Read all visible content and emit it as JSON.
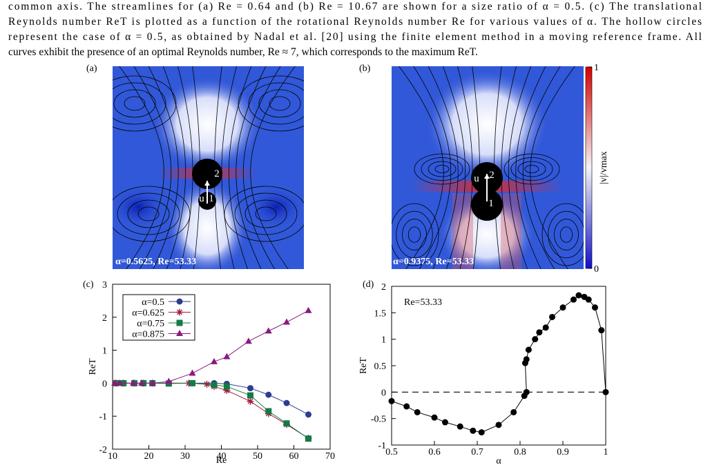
{
  "caption": [
    "common axis. The streamlines for (a) Re = 0.64 and (b) Re = 10.67 are shown for a size ratio of α = 0.5. (c) The translational",
    "Reynolds number ReT is plotted as a function of the rotational Reynolds number Re for various values of α. The hollow circles",
    "represent the case of α = 0.5, as obtained by Nadal et al. [20] using the finite element method in a moving reference frame. All",
    "curves exhibit the presence of an optimal Reynolds number, Re ≈ 7, which corresponds to the maximum ReT."
  ],
  "flow_panels": [
    {
      "label": "(a)",
      "annotation": "α=0.5625, Re=53.33",
      "markers": [
        "u",
        "1",
        "2"
      ]
    },
    {
      "label": "(b)",
      "annotation": "α=0.9375, Re=53.33",
      "markers": [
        "u",
        "1",
        "2"
      ]
    }
  ],
  "colorbar": {
    "label": "|v|/vmax",
    "ticks": [
      0,
      1
    ]
  },
  "chart_data": [
    {
      "type": "line",
      "panel_label": "(c)",
      "x_label": "Re",
      "y_label": "ReT",
      "xlim": [
        10,
        70
      ],
      "xticks": [
        10,
        20,
        30,
        40,
        50,
        60,
        70
      ],
      "ylim": [
        -2,
        3
      ],
      "yticks": [
        -2,
        -1,
        0,
        1,
        2,
        3
      ],
      "legend": "upper left",
      "series": [
        {
          "name": "α=0.5",
          "color": "#2b3d8f",
          "marker": "circle",
          "x": [
            11,
            13,
            16,
            18.5,
            21,
            25.5,
            32,
            38,
            41.5,
            48,
            53,
            58,
            64
          ],
          "values": [
            0,
            0,
            0,
            0,
            0,
            0,
            0,
            0,
            -0.02,
            -0.15,
            -0.35,
            -0.6,
            -0.95
          ]
        },
        {
          "name": "α=0.625",
          "color": "#a0183c",
          "marker": "star",
          "x": [
            11,
            13,
            16,
            18.5,
            21,
            25.5,
            31,
            36,
            38,
            41.5,
            48,
            53,
            58,
            64
          ],
          "values": [
            0,
            0,
            0,
            0,
            0,
            0,
            0,
            -0.03,
            -0.1,
            -0.22,
            -0.55,
            -0.92,
            -1.25,
            -1.67
          ]
        },
        {
          "name": "α=0.75",
          "color": "#157a45",
          "marker": "square",
          "x": [
            11,
            13,
            16,
            18.5,
            21,
            25.5,
            32,
            38,
            41.5,
            48,
            53,
            58,
            64
          ],
          "values": [
            0,
            0,
            0,
            0,
            0,
            -0.01,
            0,
            -0.05,
            -0.1,
            -0.37,
            -0.85,
            -1.22,
            -1.68
          ]
        },
        {
          "name": "α=0.875",
          "color": "#8a1a7e",
          "marker": "triangle",
          "x": [
            10.6,
            12,
            15.7,
            18,
            21,
            25.5,
            32,
            38,
            41.5,
            47.5,
            53,
            58,
            64
          ],
          "values": [
            0,
            0,
            0,
            0,
            0,
            0.05,
            0.3,
            0.65,
            0.8,
            1.27,
            1.58,
            1.85,
            2.2
          ]
        }
      ]
    },
    {
      "type": "line",
      "panel_label": "(d)",
      "x_label": "α",
      "y_label": "ReT",
      "annotation": "Re=53.33",
      "xlim": [
        0.5,
        1
      ],
      "xticks": [
        0.5,
        0.6,
        0.7,
        0.8,
        0.9,
        1
      ],
      "ylim": [
        -1,
        2
      ],
      "yticks": [
        -1,
        -0.5,
        0,
        0.5,
        1,
        1.5,
        2
      ],
      "hline": 0,
      "series": [
        {
          "color": "#000000",
          "marker": "circle",
          "x": [
            0.5,
            0.535,
            0.56,
            0.6,
            0.625,
            0.66,
            0.69,
            0.71,
            0.75,
            0.785,
            0.81,
            0.815,
            0.812,
            0.815,
            0.82,
            0.835,
            0.845,
            0.86,
            0.875,
            0.9,
            0.925,
            0.937,
            0.95,
            0.96,
            0.975,
            0.99,
            1
          ],
          "values": [
            -0.17,
            -0.27,
            -0.38,
            -0.48,
            -0.57,
            -0.65,
            -0.73,
            -0.76,
            -0.62,
            -0.38,
            -0.07,
            0,
            0.55,
            0.62,
            0.8,
            1,
            1.13,
            1.22,
            1.42,
            1.6,
            1.75,
            1.83,
            1.8,
            1.75,
            1.6,
            1.17,
            0
          ]
        }
      ]
    }
  ]
}
